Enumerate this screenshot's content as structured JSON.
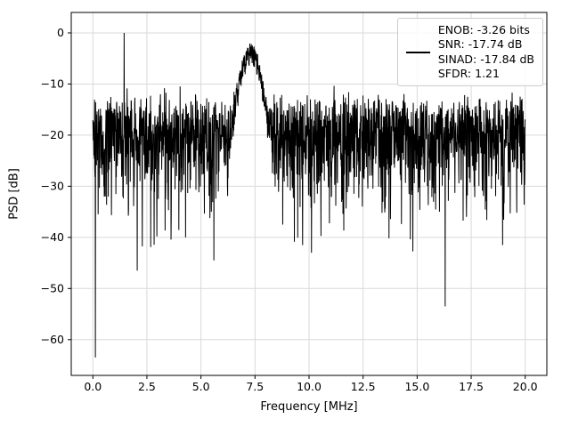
{
  "figure": {
    "background": "#ffffff"
  },
  "chart_data": {
    "type": "line",
    "title": "",
    "xlabel": "Frequency [MHz]",
    "ylabel": "PSD [dB]",
    "xlim": [
      -1,
      21
    ],
    "ylim": [
      -67,
      4
    ],
    "grid": true,
    "grid_color": "#d9d9d9",
    "xticks": [
      0,
      2.5,
      5,
      7.5,
      10,
      12.5,
      15,
      17.5,
      20
    ],
    "xtick_labels": [
      "0.0",
      "2.5",
      "5.0",
      "7.5",
      "10.0",
      "12.5",
      "15.0",
      "17.5",
      "20.0"
    ],
    "yticks": [
      0,
      -10,
      -20,
      -30,
      -40,
      -50,
      -60
    ],
    "ytick_labels": [
      "0",
      "−10",
      "−20",
      "−30",
      "−40",
      "−50",
      "−60"
    ],
    "legend": {
      "position": "upper right",
      "handle_color": "#000000",
      "lines": [
        "ENOB: -3.26 bits",
        "SNR: -17.74 dB",
        "SINAD: -17.84 dB",
        "SFDR: 1.21"
      ]
    },
    "metrics": {
      "enob_bits": -3.26,
      "snr_db": -17.74,
      "sinad_db": -17.84,
      "sfdr": 1.21
    },
    "series": [
      {
        "name": "psd",
        "color": "#000000",
        "line_width": 1,
        "synthesis": {
          "seed": 20,
          "n_points": 2048,
          "x_start": 0,
          "x_end": 20,
          "noise_floor_db": -18.5,
          "noise_min_db": -46,
          "peaks": [
            {
              "x": 1.45,
              "peak_db": 0.0,
              "width_mhz": 0.01
            },
            {
              "x": 7.3,
              "peak_db": -2.1,
              "width_mhz": 0.3
            }
          ],
          "nulls": [
            {
              "x": 0.12,
              "db": -63.5
            },
            {
              "x": 2.05,
              "db": -46.5
            },
            {
              "x": 5.6,
              "db": -44.5
            },
            {
              "x": 9.7,
              "db": -41.5
            },
            {
              "x": 16.3,
              "db": -53.5
            }
          ]
        }
      }
    ]
  }
}
